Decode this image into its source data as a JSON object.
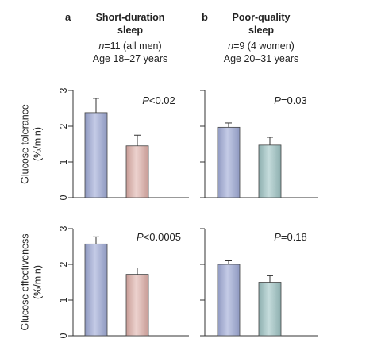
{
  "columns": [
    {
      "letter": "a",
      "title_lines": [
        "Short-duration",
        "sleep"
      ],
      "n_italic": "n",
      "n_rest": "=11 (all men)",
      "age": "Age 18–27 years"
    },
    {
      "letter": "b",
      "title_lines": [
        "Poor-quality",
        "sleep"
      ],
      "n_italic": "n",
      "n_rest": "=9 (4 women)",
      "age": "Age 20–31 years"
    }
  ],
  "colors": {
    "axis": "#333333",
    "bar_control_a": "#a7b1d4",
    "bar_treat_a": "#dcb8b3",
    "bar_control_b": "#a7b1d4",
    "bar_treat_b": "#a7c6c6"
  },
  "chart_data": [
    {
      "type": "bar",
      "panel": "a",
      "row": "top",
      "ylabel": "Glucose tolerance\n(%/min)",
      "ylim": [
        0,
        3
      ],
      "yticks": [
        "0",
        "1",
        "2",
        "3"
      ],
      "values": [
        2.38,
        1.45
      ],
      "errors": [
        0.4,
        0.3
      ],
      "pvalue_prefix": "P",
      "pvalue_rest": "<0.02"
    },
    {
      "type": "bar",
      "panel": "b",
      "row": "top",
      "ylim": [
        0,
        3
      ],
      "values": [
        1.97,
        1.47
      ],
      "errors": [
        0.12,
        0.22
      ],
      "pvalue_prefix": "P",
      "pvalue_rest": "=0.03"
    },
    {
      "type": "bar",
      "panel": "a",
      "row": "bottom",
      "ylabel": "Glucose effectiveness\n(%/min)",
      "ylim": [
        0,
        3
      ],
      "yticks": [
        "0",
        "1",
        "2",
        "3"
      ],
      "values": [
        2.57,
        1.72
      ],
      "errors": [
        0.2,
        0.18
      ],
      "pvalue_prefix": "P",
      "pvalue_rest": "<0.0005"
    },
    {
      "type": "bar",
      "panel": "b",
      "row": "bottom",
      "ylim": [
        0,
        3
      ],
      "values": [
        2.0,
        1.5
      ],
      "errors": [
        0.1,
        0.18
      ],
      "pvalue_prefix": "P",
      "pvalue_rest": "=0.18"
    }
  ]
}
